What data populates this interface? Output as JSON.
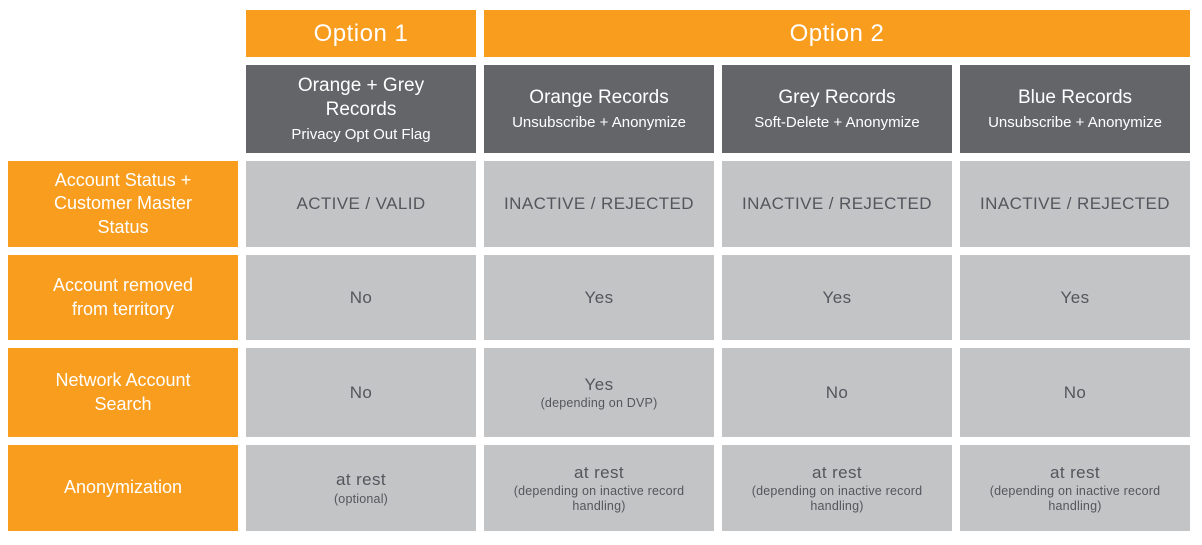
{
  "colors": {
    "orange": "#F99D1E",
    "dark_header_grey": "#636569",
    "cell_grey": "#C3C4C6",
    "cell_text": "#54565C",
    "header_text": "#FFFFFF",
    "background": "#FFFFFF"
  },
  "options_row": {
    "option1": "Option 1",
    "option2": "Option 2"
  },
  "col_headers": [
    {
      "title": "Orange + Grey Records",
      "subtitle": "Privacy Opt Out Flag"
    },
    {
      "title": "Orange Records",
      "subtitle": "Unsubscribe + Anonymize"
    },
    {
      "title": "Grey Records",
      "subtitle": "Soft-Delete + Anonymize"
    },
    {
      "title": "Blue Records",
      "subtitle": "Unsubscribe + Anonymize"
    }
  ],
  "rows": [
    {
      "label": "Account Status + Customer Master Status",
      "cells": [
        {
          "main": "ACTIVE / VALID",
          "note": ""
        },
        {
          "main": "INACTIVE / REJECTED",
          "note": ""
        },
        {
          "main": "INACTIVE / REJECTED",
          "note": ""
        },
        {
          "main": "INACTIVE / REJECTED",
          "note": ""
        }
      ]
    },
    {
      "label": "Account removed from territory",
      "cells": [
        {
          "main": "No",
          "note": ""
        },
        {
          "main": "Yes",
          "note": ""
        },
        {
          "main": "Yes",
          "note": ""
        },
        {
          "main": "Yes",
          "note": ""
        }
      ]
    },
    {
      "label": "Network Account Search",
      "cells": [
        {
          "main": "No",
          "note": ""
        },
        {
          "main": "Yes",
          "note": "(depending on DVP)"
        },
        {
          "main": "No",
          "note": ""
        },
        {
          "main": "No",
          "note": ""
        }
      ]
    },
    {
      "label": "Anonymization",
      "cells": [
        {
          "main": "at rest",
          "note": "(optional)"
        },
        {
          "main": "at rest",
          "note": "(depending on inactive record handling)"
        },
        {
          "main": "at rest",
          "note": "(depending on inactive record handling)"
        },
        {
          "main": "at rest",
          "note": "(depending on inactive record handling)"
        }
      ]
    }
  ]
}
